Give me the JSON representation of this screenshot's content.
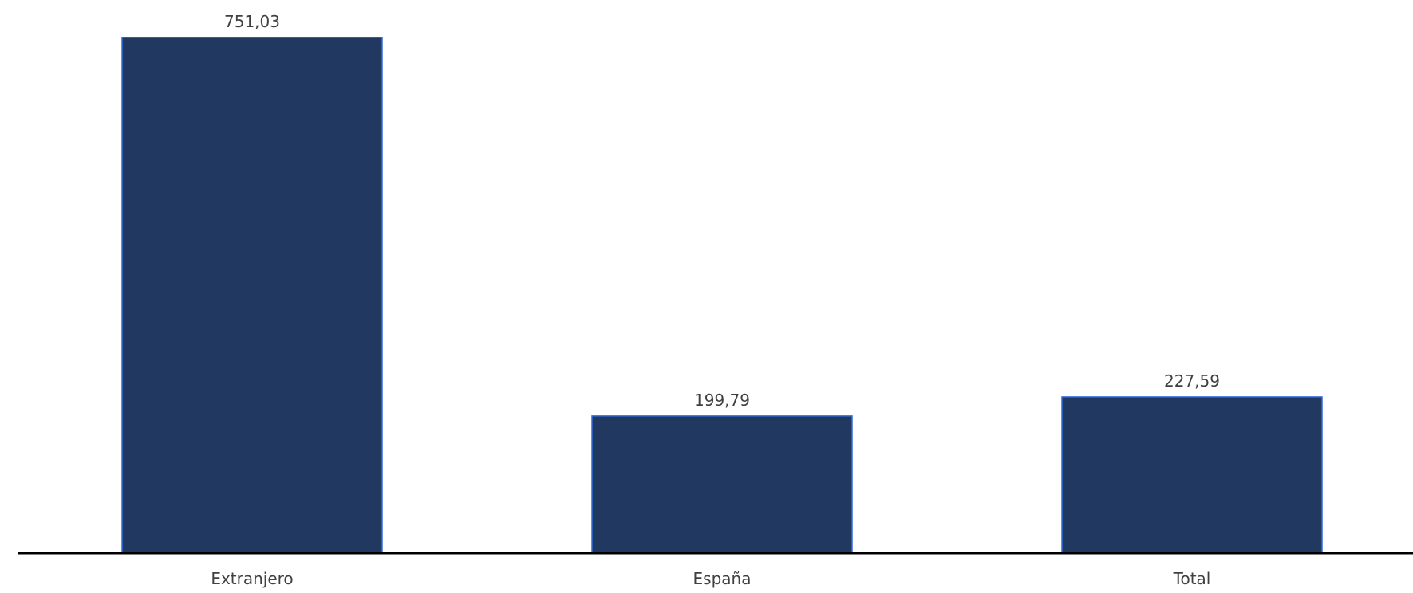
{
  "chart_data": {
    "type": "bar",
    "categories": [
      "Extranjero",
      "España",
      "Total"
    ],
    "values": [
      751.03,
      199.79,
      227.59
    ],
    "value_labels": [
      "751,03",
      "199,79",
      "227,59"
    ],
    "title": "",
    "xlabel": "",
    "ylabel": "",
    "ylim": [
      0,
      751.03
    ],
    "grid": false,
    "legend": "none",
    "bar_color": "#213861",
    "bar_outline_color": "#2f6ad9",
    "axis_color": "#000000",
    "label_color": "#404040"
  }
}
